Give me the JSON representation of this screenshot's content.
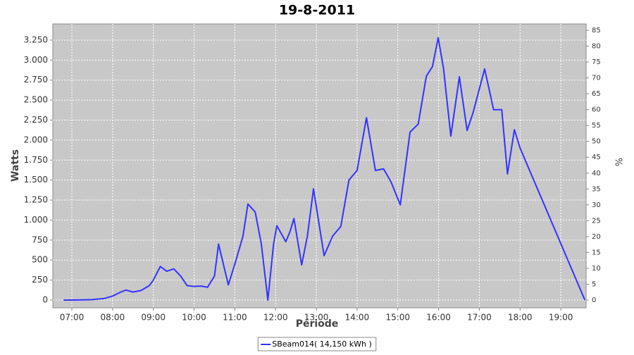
{
  "chart_data": {
    "type": "line",
    "title": "19-8-2011",
    "x_label": "Période",
    "y_label": "Watts",
    "y2_label": "%",
    "xlim": [
      6.533,
      19.62
    ],
    "xticks": [
      {
        "value": 7,
        "label": "07:00"
      },
      {
        "value": 8,
        "label": "08:00"
      },
      {
        "value": 9,
        "label": "09:00"
      },
      {
        "value": 10,
        "label": "10:00"
      },
      {
        "value": 11,
        "label": "11:00"
      },
      {
        "value": 12,
        "label": "12:00"
      },
      {
        "value": 13,
        "label": "13:00"
      },
      {
        "value": 14,
        "label": "14:00"
      },
      {
        "value": 15,
        "label": "15:00"
      },
      {
        "value": 16,
        "label": "16:00"
      },
      {
        "value": 17,
        "label": "17:00"
      },
      {
        "value": 18,
        "label": "18:00"
      },
      {
        "value": 19,
        "label": "19:00"
      }
    ],
    "ylim": [
      -97,
      3452
    ],
    "yticks": [
      0,
      250,
      500,
      750,
      {
        "value": 1000,
        "label": "1.000"
      },
      {
        "value": 1250,
        "label": "1.250"
      },
      {
        "value": 1500,
        "label": "1.500"
      },
      {
        "value": 1750,
        "label": "1.750"
      },
      {
        "value": 2000,
        "label": "2.000"
      },
      {
        "value": 2250,
        "label": "2.250"
      },
      {
        "value": 2500,
        "label": "2.500"
      },
      {
        "value": 2750,
        "label": "2.750"
      },
      {
        "value": 3000,
        "label": "3.000"
      },
      {
        "value": 3250,
        "label": "3.250"
      }
    ],
    "y2lim": [
      -2.44,
      87
    ],
    "y2ticks": [
      0,
      5,
      10,
      15,
      20,
      25,
      30,
      35,
      40,
      45,
      50,
      55,
      60,
      65,
      70,
      75,
      80,
      85
    ],
    "grid": true,
    "series": [
      {
        "name": "SBeam014( 14,150 kWh )",
        "color": "#3333ff",
        "x": [
          6.8,
          7.0,
          7.5,
          7.8,
          8.0,
          8.2,
          8.33,
          8.5,
          8.7,
          8.9,
          9.0,
          9.17,
          9.33,
          9.5,
          9.67,
          9.83,
          10.0,
          10.17,
          10.33,
          10.5,
          10.6,
          10.84,
          11.0,
          11.2,
          11.32,
          11.5,
          11.65,
          11.81,
          11.95,
          12.03,
          12.25,
          12.35,
          12.45,
          12.64,
          12.78,
          12.93,
          13.19,
          13.4,
          13.6,
          13.8,
          14.0,
          14.23,
          14.45,
          14.65,
          14.83,
          15.06,
          15.3,
          15.5,
          15.7,
          15.85,
          15.99,
          16.12,
          16.3,
          16.51,
          16.7,
          16.85,
          17.13,
          17.35,
          17.55,
          17.69,
          17.86,
          18.0,
          19.59
        ],
        "values": [
          0,
          0,
          5,
          20,
          50,
          100,
          125,
          100,
          120,
          180,
          250,
          420,
          360,
          390,
          300,
          180,
          170,
          175,
          160,
          300,
          700,
          190,
          450,
          800,
          1200,
          1100,
          700,
          0,
          700,
          930,
          730,
          850,
          1020,
          440,
          800,
          1390,
          555,
          800,
          920,
          1500,
          1620,
          2280,
          1620,
          1640,
          1480,
          1190,
          2100,
          2200,
          2800,
          2920,
          3280,
          2900,
          2050,
          2790,
          2120,
          2350,
          2890,
          2380,
          2380,
          1577,
          2130,
          1900,
          0
        ]
      }
    ]
  }
}
